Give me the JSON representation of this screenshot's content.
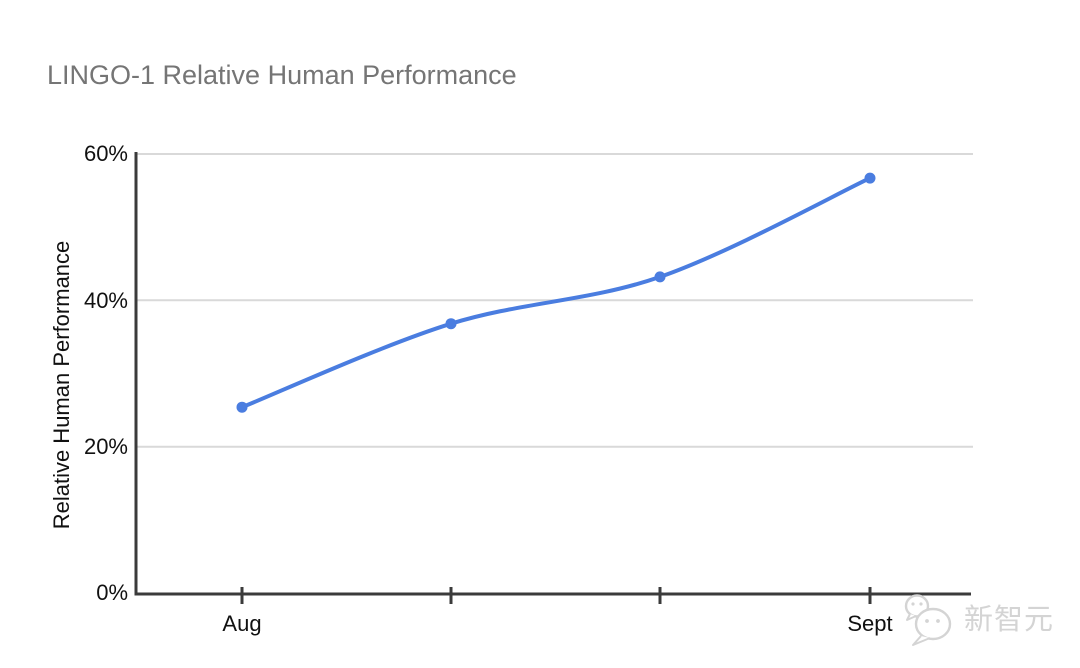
{
  "chart_data": {
    "type": "line",
    "title": "LINGO-1 Relative Human Performance",
    "xlabel": "",
    "ylabel": "Relative Human Performance",
    "categories": [
      "Aug",
      "",
      "",
      "Sept"
    ],
    "series": [
      {
        "name": "Relative Human Performance",
        "values": [
          25.4,
          36.8,
          43.2,
          56.7
        ]
      }
    ],
    "ylim": [
      0,
      60
    ],
    "yticks": [
      0,
      20,
      40,
      60
    ],
    "ytick_labels": [
      "0%",
      "20%",
      "40%",
      "60%"
    ],
    "grid": "horizontal",
    "legend": "none",
    "colors": {
      "line": "#4a7de0",
      "grid": "#d9d9d9",
      "axis": "#3b3b3b",
      "title": "#757575",
      "labels": "#111111",
      "watermark": "#d4d4d4"
    }
  },
  "watermark": {
    "text": "新智元",
    "icon": "chat-bubbles-logo-icon"
  }
}
